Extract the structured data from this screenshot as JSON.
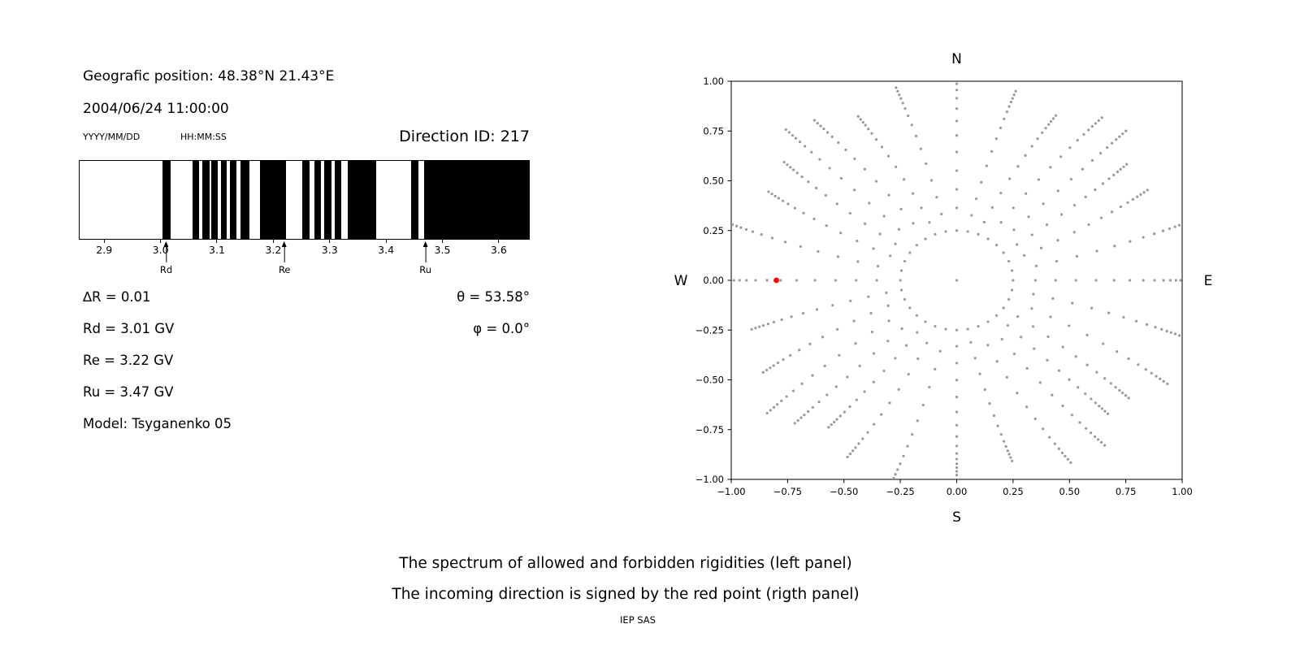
{
  "left_panel": {
    "geo_position": "Geografic position: 48.38°N 21.43°E",
    "datetime": "2004/06/24 11:00:00",
    "date_format_label": "YYYY/MM/DD",
    "time_format_label": "HH:MM:SS",
    "direction_id": "Direction ID: 217",
    "delta_r": "∆R = 0.01",
    "rd": "Rd = 3.01 GV",
    "re": "Re = 3.22 GV",
    "ru": "Ru = 3.47 GV",
    "model": "Model: Tsyganenko 05",
    "theta": "θ = 53.58°",
    "phi": "φ = 0.0°"
  },
  "captions": {
    "line1": "The spectrum of allowed and forbidden rigidities (left panel)",
    "line2": "The incoming direction is signed by the red point (rigth panel)",
    "credit": "IEP SAS"
  },
  "chart_data": [
    {
      "type": "bar",
      "title": "",
      "xlabel": "",
      "xlim": [
        2.855,
        3.655
      ],
      "xticks": [
        2.9,
        3.0,
        3.1,
        3.2,
        3.3,
        3.4,
        3.5,
        3.6
      ],
      "xtick_labels": [
        "2.9",
        "3.0",
        "3.1",
        "3.2",
        "3.3",
        "3.4",
        "3.5",
        "3.6"
      ],
      "forbidden_bands_gv": [
        [
          3.003,
          3.017
        ],
        [
          3.056,
          3.068
        ],
        [
          3.074,
          3.086
        ],
        [
          3.09,
          3.101
        ],
        [
          3.106,
          3.117
        ],
        [
          3.122,
          3.134
        ],
        [
          3.141,
          3.157
        ],
        [
          3.176,
          3.223
        ],
        [
          3.252,
          3.264
        ],
        [
          3.273,
          3.285
        ],
        [
          3.291,
          3.303
        ],
        [
          3.309,
          3.321
        ],
        [
          3.332,
          3.383
        ],
        [
          3.445,
          3.458
        ],
        [
          3.468,
          3.655
        ]
      ],
      "markers": [
        {
          "label": "Rd",
          "value": 3.01
        },
        {
          "label": "Re",
          "value": 3.22
        },
        {
          "label": "Ru",
          "value": 3.47
        }
      ],
      "colors": {
        "forbidden": "#000000",
        "allowed": "#ffffff"
      }
    },
    {
      "type": "scatter",
      "title": "",
      "xlim": [
        -1,
        1
      ],
      "ylim": [
        -1,
        1
      ],
      "xticks": [
        -1,
        -0.75,
        -0.5,
        -0.25,
        0,
        0.25,
        0.5,
        0.75,
        1
      ],
      "yticks": [
        -1,
        -0.75,
        -0.5,
        -0.25,
        0,
        0.25,
        0.5,
        0.75,
        1
      ],
      "xtick_labels": [
        "−1.00",
        "−0.75",
        "−0.50",
        "−0.25",
        "0.00",
        "0.25",
        "0.50",
        "0.75",
        "1.00"
      ],
      "ytick_labels": [
        "−1.00",
        "−0.75",
        "−0.50",
        "−0.25",
        "0.00",
        "0.25",
        "0.50",
        "0.75",
        "1.00"
      ],
      "compass": {
        "top": "N",
        "bottom": "S",
        "left": "W",
        "right": "E"
      },
      "gray_dots": {
        "color": "#999999",
        "n_spokes": 32,
        "inner_ring_radius": 0.25,
        "spoke_radii": [
          0.35,
          0.44,
          0.53,
          0.62,
          0.7,
          0.77,
          0.83,
          0.88,
          0.92,
          0.95,
          0.975,
          0.995,
          1.015,
          1.035
        ],
        "center_dot": true
      },
      "red_point": {
        "x": -0.8,
        "y": 0.0,
        "color": "#ff0000"
      }
    }
  ]
}
